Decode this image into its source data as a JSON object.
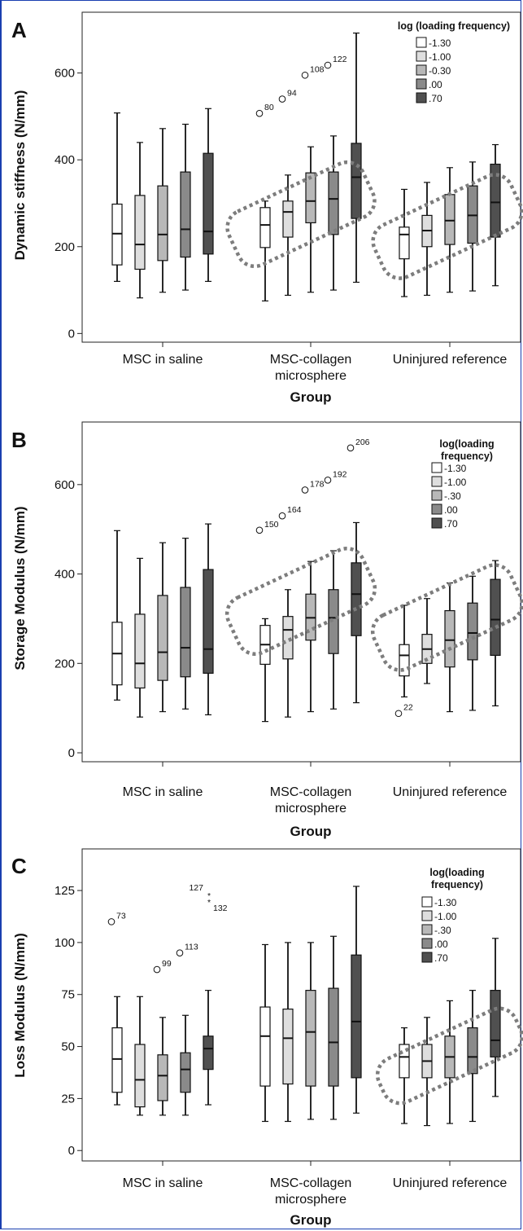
{
  "chart_data": [
    {
      "type": "boxplot",
      "panel": "A",
      "ylabel": "Dynamic stiffness (N/mm)",
      "xlabel": "Group",
      "yticks": [
        0,
        200,
        400,
        600
      ],
      "ylim": [
        -20,
        740
      ],
      "groups": [
        "MSC in saline",
        "MSC-collagen\nmicrosphere",
        "Uninjured reference"
      ],
      "legend": {
        "title": [
          "log (loading frequency)"
        ],
        "entries": [
          "-1.30",
          "-1.00",
          "-0.30",
          ".00",
          ".70"
        ],
        "position": "top-right"
      },
      "series_colors": [
        "#ffffff",
        "#dedede",
        "#b8b8b8",
        "#8a8a8a",
        "#505050"
      ],
      "boxes": [
        [
          {
            "min": 120,
            "q1": 158,
            "median": 230,
            "q3": 298,
            "max": 508
          },
          {
            "min": 82,
            "q1": 148,
            "median": 205,
            "q3": 318,
            "max": 440
          },
          {
            "min": 95,
            "q1": 168,
            "median": 228,
            "q3": 340,
            "max": 472
          },
          {
            "min": 100,
            "q1": 176,
            "median": 240,
            "q3": 372,
            "max": 482
          },
          {
            "min": 120,
            "q1": 183,
            "median": 235,
            "q3": 415,
            "max": 518
          }
        ],
        [
          {
            "min": 75,
            "q1": 198,
            "median": 250,
            "q3": 290,
            "max": 305
          },
          {
            "min": 88,
            "q1": 222,
            "median": 280,
            "q3": 305,
            "max": 365
          },
          {
            "min": 95,
            "q1": 255,
            "median": 305,
            "q3": 370,
            "max": 430
          },
          {
            "min": 100,
            "q1": 228,
            "median": 310,
            "q3": 372,
            "max": 455
          },
          {
            "min": 118,
            "q1": 265,
            "median": 360,
            "q3": 438,
            "max": 692
          }
        ],
        [
          {
            "min": 85,
            "q1": 172,
            "median": 228,
            "q3": 245,
            "max": 332
          },
          {
            "min": 88,
            "q1": 200,
            "median": 237,
            "q3": 272,
            "max": 348
          },
          {
            "min": 95,
            "q1": 205,
            "median": 260,
            "q3": 320,
            "max": 382
          },
          {
            "min": 98,
            "q1": 208,
            "median": 272,
            "q3": 340,
            "max": 395
          },
          {
            "min": 110,
            "q1": 222,
            "median": 302,
            "q3": 390,
            "max": 435
          }
        ]
      ],
      "outliers": [
        {
          "group": 1,
          "series": 0,
          "value": 507,
          "label": "80",
          "marker": "circle"
        },
        {
          "group": 1,
          "series": 1,
          "value": 540,
          "label": "94",
          "marker": "circle"
        },
        {
          "group": 1,
          "series": 2,
          "value": 595,
          "label": "108",
          "marker": "circle"
        },
        {
          "group": 1,
          "series": 3,
          "value": 618,
          "label": "122",
          "marker": "circle"
        }
      ],
      "highlights": [
        1,
        2
      ]
    },
    {
      "type": "boxplot",
      "panel": "B",
      "ylabel": "Storage Modulus (N/mm)",
      "xlabel": "Group",
      "yticks": [
        0,
        200,
        400,
        600
      ],
      "ylim": [
        -20,
        740
      ],
      "groups": [
        "MSC in saline",
        "MSC-collagen\nmicrosphere",
        "Uninjured reference"
      ],
      "legend": {
        "title": [
          "log(loading",
          "frequency)"
        ],
        "entries": [
          "-1.30",
          "-1.00",
          "-.30",
          ".00",
          ".70"
        ],
        "position": "top-right"
      },
      "series_colors": [
        "#ffffff",
        "#dedede",
        "#b8b8b8",
        "#8a8a8a",
        "#505050"
      ],
      "boxes": [
        [
          {
            "min": 118,
            "q1": 152,
            "median": 222,
            "q3": 292,
            "max": 497
          },
          {
            "min": 80,
            "q1": 145,
            "median": 200,
            "q3": 310,
            "max": 435
          },
          {
            "min": 92,
            "q1": 162,
            "median": 225,
            "q3": 352,
            "max": 470
          },
          {
            "min": 98,
            "q1": 170,
            "median": 235,
            "q3": 370,
            "max": 480
          },
          {
            "min": 85,
            "q1": 178,
            "median": 232,
            "q3": 410,
            "max": 512
          }
        ],
        [
          {
            "min": 70,
            "q1": 198,
            "median": 242,
            "q3": 285,
            "max": 300
          },
          {
            "min": 80,
            "q1": 210,
            "median": 275,
            "q3": 305,
            "max": 365
          },
          {
            "min": 92,
            "q1": 252,
            "median": 302,
            "q3": 355,
            "max": 428
          },
          {
            "min": 98,
            "q1": 222,
            "median": 302,
            "q3": 365,
            "max": 452
          },
          {
            "min": 112,
            "q1": 262,
            "median": 355,
            "q3": 425,
            "max": 515
          }
        ],
        [
          {
            "min": 125,
            "q1": 172,
            "median": 218,
            "q3": 242,
            "max": 330
          },
          {
            "min": 155,
            "q1": 200,
            "median": 232,
            "q3": 265,
            "max": 345
          },
          {
            "min": 92,
            "q1": 192,
            "median": 252,
            "q3": 318,
            "max": 380
          },
          {
            "min": 95,
            "q1": 208,
            "median": 268,
            "q3": 335,
            "max": 395
          },
          {
            "min": 105,
            "q1": 218,
            "median": 298,
            "q3": 388,
            "max": 430
          }
        ]
      ],
      "outliers": [
        {
          "group": 1,
          "series": 0,
          "value": 498,
          "label": "150",
          "marker": "circle"
        },
        {
          "group": 1,
          "series": 1,
          "value": 530,
          "label": "164",
          "marker": "circle"
        },
        {
          "group": 1,
          "series": 2,
          "value": 588,
          "label": "178",
          "marker": "circle"
        },
        {
          "group": 1,
          "series": 3,
          "value": 610,
          "label": "192",
          "marker": "circle"
        },
        {
          "group": 1,
          "series": 4,
          "value": 682,
          "label": "206",
          "marker": "circle"
        },
        {
          "group": 2,
          "series": 0,
          "value": 88,
          "label": "22",
          "marker": "circle"
        }
      ],
      "highlights": [
        1,
        2
      ]
    },
    {
      "type": "boxplot",
      "panel": "C",
      "ylabel": "Loss Modulus (N/mm)",
      "xlabel": "Group",
      "yticks": [
        0,
        25,
        50,
        75,
        100,
        125
      ],
      "ylim": [
        -5,
        145
      ],
      "groups": [
        "MSC in saline",
        "MSC-collagen\nmicrosphere",
        "Uninjured reference"
      ],
      "legend": {
        "title": [
          "log(loading",
          "frequency)"
        ],
        "entries": [
          "-1.30",
          "-1.00",
          "-.30",
          ".00",
          ".70"
        ],
        "position": "top-right"
      },
      "series_colors": [
        "#ffffff",
        "#dedede",
        "#b8b8b8",
        "#8a8a8a",
        "#505050"
      ],
      "boxes": [
        [
          {
            "min": 22,
            "q1": 28,
            "median": 44,
            "q3": 59,
            "max": 74
          },
          {
            "min": 17,
            "q1": 21,
            "median": 34,
            "q3": 51,
            "max": 74
          },
          {
            "min": 17,
            "q1": 24,
            "median": 36,
            "q3": 46,
            "max": 64
          },
          {
            "min": 17,
            "q1": 28,
            "median": 39,
            "q3": 47,
            "max": 65
          },
          {
            "min": 22,
            "q1": 39,
            "median": 49,
            "q3": 55,
            "max": 77
          }
        ],
        [
          {
            "min": 14,
            "q1": 31,
            "median": 55,
            "q3": 69,
            "max": 99
          },
          {
            "min": 14,
            "q1": 32,
            "median": 54,
            "q3": 68,
            "max": 100
          },
          {
            "min": 15,
            "q1": 31,
            "median": 57,
            "q3": 77,
            "max": 100
          },
          {
            "min": 15,
            "q1": 31,
            "median": 52,
            "q3": 78,
            "max": 103
          },
          {
            "min": 18,
            "q1": 35,
            "median": 62,
            "q3": 94,
            "max": 127
          }
        ],
        [
          {
            "min": 13,
            "q1": 35,
            "median": 45,
            "q3": 51,
            "max": 59
          },
          {
            "min": 12,
            "q1": 35,
            "median": 43,
            "q3": 51,
            "max": 64
          },
          {
            "min": 13,
            "q1": 35,
            "median": 45,
            "q3": 55,
            "max": 72
          },
          {
            "min": 14,
            "q1": 37,
            "median": 45,
            "q3": 59,
            "max": 77
          },
          {
            "min": 26,
            "q1": 45,
            "median": 53,
            "q3": 77,
            "max": 102
          }
        ]
      ],
      "outliers": [
        {
          "group": 0,
          "series": 0,
          "value": 110,
          "label": "73",
          "marker": "circle"
        },
        {
          "group": 0,
          "series": 2,
          "value": 87,
          "label": "99",
          "marker": "circle"
        },
        {
          "group": 0,
          "series": 3,
          "value": 95,
          "label": "113",
          "marker": "circle"
        },
        {
          "group": 0,
          "series": 4,
          "value": 123,
          "label": "127",
          "marker": "star"
        },
        {
          "group": 0,
          "series": 4,
          "value": 120,
          "label": "132",
          "marker": "star"
        }
      ],
      "highlights": [
        2
      ]
    }
  ]
}
